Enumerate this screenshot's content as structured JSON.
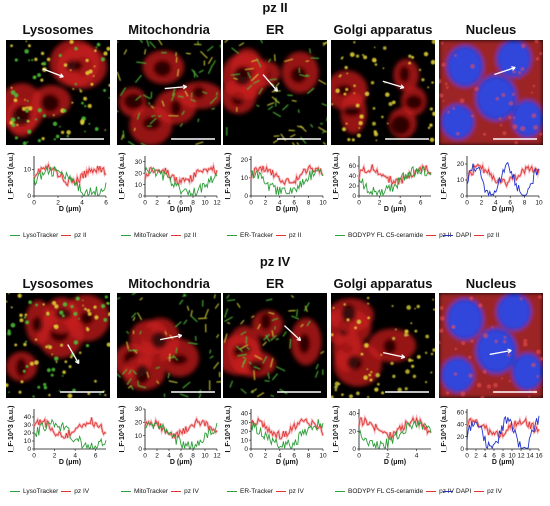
{
  "colors": {
    "green": "#2e9e3a",
    "red": "#e0342f",
    "blue": "#2233cc",
    "pink": "#f2a6ad"
  },
  "sections": [
    {
      "title": "pz II",
      "columns": [
        {
          "title": "Lysosomes",
          "stain": "lyso",
          "xlim": [
            0,
            6
          ],
          "xticks": [
            "0",
            "2",
            "4",
            "6"
          ],
          "ylim": [
            0,
            15
          ],
          "yticks": [
            "0",
            "10"
          ],
          "ylabel": "I_F·10^3 (a.u.)",
          "legend": [
            "LysoTracker",
            "pz II"
          ]
        },
        {
          "title": "Mitochondria",
          "stain": "mito",
          "xlim": [
            0,
            12
          ],
          "xticks": [
            "0",
            "2",
            "4",
            "6",
            "8",
            "10",
            "12"
          ],
          "ylim": [
            0,
            35
          ],
          "yticks": [
            "0",
            "10",
            "20",
            "30"
          ],
          "ylabel": "I_F·10^3 (a.u.)",
          "legend": [
            "MitoTracker",
            "pz II"
          ]
        },
        {
          "title": "ER",
          "stain": "er",
          "xlim": [
            0,
            10
          ],
          "xticks": [
            "0",
            "2",
            "4",
            "6",
            "8",
            "10"
          ],
          "ylim": [
            0,
            22
          ],
          "yticks": [
            "0",
            "10",
            "20"
          ],
          "ylabel": "I_F·10^3 (a.u.)",
          "legend": [
            "ER-Tracker",
            "pz II"
          ]
        },
        {
          "title": "Golgi apparatus",
          "stain": "golgi",
          "xlim": [
            0,
            7
          ],
          "xticks": [
            "0",
            "2",
            "4",
            "6"
          ],
          "ylim": [
            0,
            80
          ],
          "yticks": [
            "0",
            "20",
            "40",
            "60"
          ],
          "ylabel": "I_F·10^3 (a.u.)",
          "legend": [
            "BODYPY FL C5-ceramide",
            "pz II"
          ]
        },
        {
          "title": "Nucleus",
          "stain": "nucleus",
          "xlim": [
            0,
            10
          ],
          "xticks": [
            "0",
            "2",
            "4",
            "6",
            "8",
            "10"
          ],
          "ylim": [
            0,
            25
          ],
          "yticks": [
            "0",
            "10",
            "20"
          ],
          "ylabel": "I_F·10^3 (a.u.)",
          "legend": [
            "DAPI",
            "pz II"
          ]
        }
      ]
    },
    {
      "title": "pz IV",
      "columns": [
        {
          "title": "Lysosomes",
          "stain": "lyso",
          "xlim": [
            0,
            7
          ],
          "xticks": [
            "0",
            "2",
            "4",
            "6"
          ],
          "ylim": [
            0,
            50
          ],
          "yticks": [
            "0",
            "10",
            "20",
            "30",
            "40"
          ],
          "ylabel": "I_F·10^3 (a.u.)",
          "legend": [
            "LysoTracker",
            "pz IV"
          ]
        },
        {
          "title": "Mitochondria",
          "stain": "mito",
          "xlim": [
            0,
            12
          ],
          "xticks": [
            "0",
            "2",
            "4",
            "6",
            "8",
            "10",
            "12"
          ],
          "ylim": [
            0,
            30
          ],
          "yticks": [
            "0",
            "10",
            "20",
            "30"
          ],
          "ylabel": "I_F·10^3 (a.u.)",
          "legend": [
            "MitoTracker",
            "pz IV"
          ]
        },
        {
          "title": "ER",
          "stain": "er",
          "xlim": [
            0,
            10
          ],
          "xticks": [
            "0",
            "2",
            "4",
            "6",
            "8",
            "10"
          ],
          "ylim": [
            0,
            45
          ],
          "yticks": [
            "0",
            "10",
            "20",
            "30",
            "40"
          ],
          "ylabel": "I_F·10^3 (a.u.)",
          "legend": [
            "ER-Tracker",
            "pz IV"
          ]
        },
        {
          "title": "Golgi apparatus",
          "stain": "golgi",
          "xlim": [
            0,
            5
          ],
          "xticks": [
            "0",
            "2",
            "4"
          ],
          "ylim": [
            0,
            45
          ],
          "yticks": [
            "0",
            "20",
            "40"
          ],
          "ylabel": "I_F·10^3 (a.u.)",
          "legend": [
            "BODYPY FL C5-ceramide",
            "pz IV"
          ]
        },
        {
          "title": "Nucleus",
          "stain": "nucleus",
          "xlim": [
            0,
            16
          ],
          "xticks": [
            "0",
            "2",
            "4",
            "6",
            "8",
            "10",
            "12",
            "14",
            "16"
          ],
          "ylim": [
            0,
            65
          ],
          "yticks": [
            "0",
            "20",
            "40",
            "60"
          ],
          "ylabel": "I_F·10^3 (a.u.)",
          "legend": [
            "DAPI",
            "pz IV"
          ]
        }
      ]
    }
  ],
  "xlabel": "D (μm)"
}
